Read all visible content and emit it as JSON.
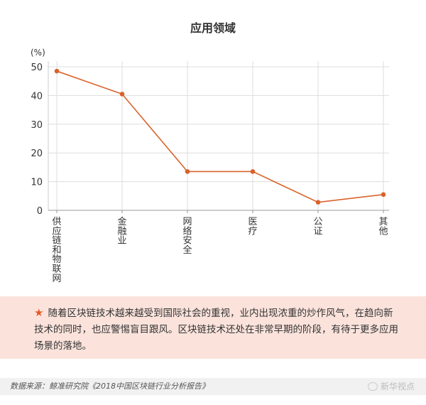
{
  "chart_data": {
    "type": "line",
    "title": "应用领域",
    "ylabel": "(%)",
    "ylim": [
      0,
      50
    ],
    "yticks": [
      0,
      10,
      20,
      30,
      40,
      50
    ],
    "categories": [
      "供应链和物联网",
      "金融业",
      "网络安全",
      "医疗",
      "公证",
      "其他"
    ],
    "values": [
      48.5,
      40.5,
      13.5,
      13.5,
      2.8,
      5.5
    ],
    "grid": true,
    "color": "#d9622b"
  },
  "note": {
    "text": "随着区块链技术越来越受到国际社会的重视，业内出现浓重的炒作风气，在趋向新技术的同时，也应警惕盲目跟风。区块链技术还处在非常早期的阶段，有待于更多应用场景的落地。"
  },
  "source": "数据来源：鲸准研究院《2018中国区块链行业分析报告》",
  "watermark": "新华视点"
}
